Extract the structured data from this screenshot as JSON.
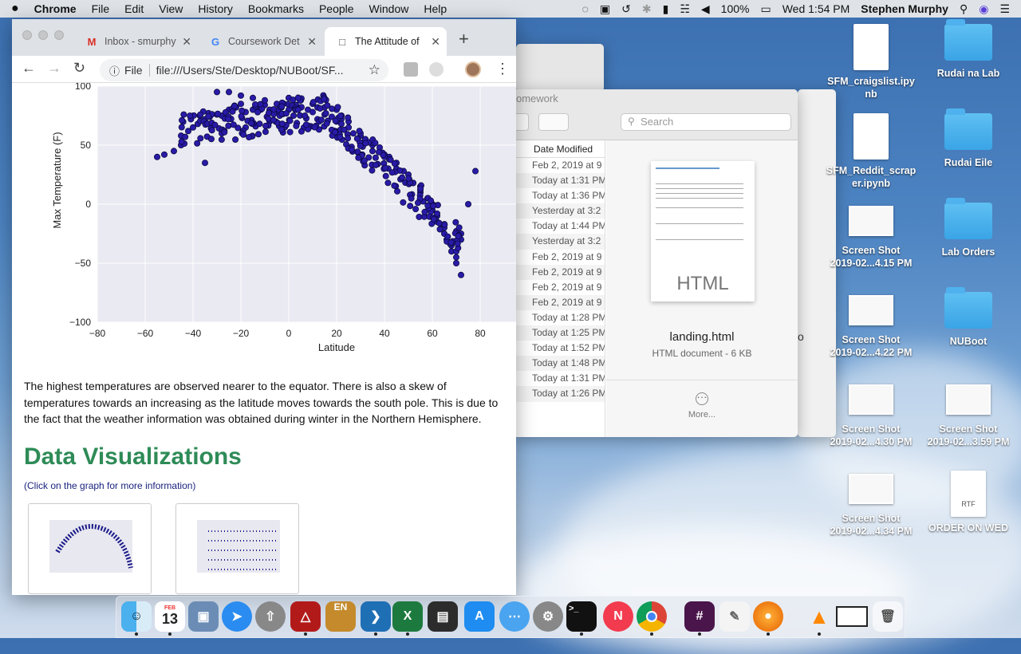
{
  "menubar": {
    "apple": "",
    "app": "Chrome",
    "items": [
      "File",
      "Edit",
      "View",
      "History",
      "Bookmarks",
      "People",
      "Window",
      "Help"
    ],
    "battery": "100%",
    "clock": "Wed 1:54 PM",
    "user": "Stephen Murphy"
  },
  "browser": {
    "tabs": [
      {
        "title": "Inbox - smurphy",
        "icon": "gmail-icon"
      },
      {
        "title": "Coursework Det",
        "icon": "google-icon"
      },
      {
        "title": "The Attitude of",
        "icon": "page-icon"
      }
    ],
    "new_tab": "+",
    "url_prefix": "File",
    "url": "file:///Users/Ste/Desktop/NUBoot/SF...",
    "paragraph": "The highest temperatures are observed nearer to the equator. There is also a skew of temperatures towards an increasing as the latitude moves towards the south pole. This is due to the fact that the weather information was obtained during winter in the Northern Hemisphere.",
    "section_title": "Data Visualizations",
    "section_subtitle": "(Click on the graph for more information)"
  },
  "chart_data": {
    "type": "scatter",
    "xlabel": "Latitude",
    "ylabel": "Max Temperature (F)",
    "xlim": [
      -80,
      95
    ],
    "ylim": [
      -100,
      100
    ],
    "xticks": [
      "−80",
      "−60",
      "−40",
      "−20",
      "0",
      "20",
      "40",
      "60",
      "80"
    ],
    "yticks": [
      "100",
      "50",
      "0",
      "−50",
      "−100"
    ],
    "grid": true,
    "series": [
      {
        "values_desc": "",
        "x": [
          -55,
          -52,
          -48,
          -45,
          -45,
          -42,
          -40,
          -38,
          -35,
          -35,
          -33,
          -30,
          -28,
          -25,
          -22,
          -20,
          -18,
          -15,
          -12,
          -10,
          -8,
          -5,
          -3,
          0,
          3,
          5,
          8,
          10,
          12,
          15,
          18,
          20,
          22,
          25,
          27,
          30,
          32,
          35,
          35,
          38,
          40,
          42,
          45,
          45,
          48,
          50,
          50,
          52,
          55,
          55,
          58,
          60,
          60,
          62,
          62,
          64,
          65,
          66,
          68,
          68,
          70,
          70,
          72,
          72,
          75,
          78,
          -30,
          -25,
          -20,
          -15,
          -10,
          -5,
          0,
          5,
          10,
          15,
          20,
          25,
          30,
          35,
          40,
          45,
          50,
          55,
          60,
          65,
          70,
          -35,
          -28,
          -18,
          -8,
          2,
          12,
          22,
          32,
          42,
          52,
          62,
          72
        ],
        "y": [
          40,
          42,
          45,
          50,
          58,
          62,
          65,
          68,
          70,
          72,
          74,
          76,
          75,
          80,
          82,
          85,
          78,
          80,
          82,
          84,
          80,
          78,
          82,
          80,
          84,
          82,
          80,
          78,
          82,
          76,
          74,
          70,
          72,
          65,
          60,
          58,
          55,
          50,
          45,
          48,
          42,
          40,
          35,
          30,
          28,
          25,
          20,
          18,
          15,
          10,
          5,
          0,
          -5,
          -10,
          -15,
          -20,
          -25,
          -30,
          -35,
          -40,
          -45,
          -50,
          -60,
          -30,
          0,
          28,
          95,
          95,
          92,
          90,
          88,
          85,
          90,
          88,
          85,
          82,
          80,
          70,
          60,
          52,
          40,
          30,
          20,
          12,
          0,
          -20,
          -40,
          35,
          60,
          65,
          70,
          75,
          72,
          68,
          55,
          38,
          18,
          -8,
          -25
        ]
      }
    ]
  },
  "finder": {
    "window_title": "omework",
    "search_placeholder": "Search",
    "col_header": "Date Modified",
    "rows": [
      "Feb 2, 2019 at 9",
      "Today at 1:31 PM",
      "Today at 1:36 PM",
      "Yesterday at 3:2",
      "Today at 1:44 PM",
      "Yesterday at 3:2",
      "Feb 2, 2019 at 9",
      "Feb 2, 2019 at 9",
      "Feb 2, 2019 at 9",
      "Feb 2, 2019 at 9",
      "Today at 1:28 PM",
      "Today at 1:25 PM",
      "Today at 1:52 PM",
      "Today at 1:48 PM",
      "Today at 1:31 PM",
      "Today at 1:26 PM"
    ],
    "preview_type": "HTML",
    "file_name": "landing.html",
    "file_info": "HTML document - 6 KB",
    "more": "More..."
  },
  "desktop": {
    "icons": [
      {
        "label1": "SFM_craigslist.ipy",
        "label2": "nb",
        "kind": "doc"
      },
      {
        "label1": "Rudai na Lab",
        "label2": "",
        "kind": "folder"
      },
      {
        "label1": "SFM_Reddit_scrap",
        "label2": "er.ipynb",
        "kind": "doc"
      },
      {
        "label1": "Rudai Eile",
        "label2": "",
        "kind": "folder"
      },
      {
        "label1": "Screen Shot",
        "label2": "2019-02...4.15 PM",
        "kind": "shot"
      },
      {
        "label1": "Lab Orders",
        "label2": "",
        "kind": "folder"
      },
      {
        "label1": "Screen Shot",
        "label2": "2019-02...4.22 PM",
        "kind": "shot"
      },
      {
        "label1": "NUBoot",
        "label2": "",
        "kind": "folder"
      },
      {
        "label1": "Screen Shot",
        "label2": "2019-02...4.30 PM",
        "kind": "shot"
      },
      {
        "label1": "Screen Shot",
        "label2": "2019-02...3.59 PM",
        "kind": "shot"
      },
      {
        "label1": "Screen Shot",
        "label2": "2019-02...4.34 PM",
        "kind": "shot"
      },
      {
        "label1": "ORDER ON WED",
        "label2": "",
        "kind": "rtf"
      }
    ],
    "rtf_badge": "RTF",
    "behind_letter": "o"
  },
  "dock": {
    "calendar_month": "FEB",
    "calendar_day": "13",
    "en_badge": "EN"
  }
}
